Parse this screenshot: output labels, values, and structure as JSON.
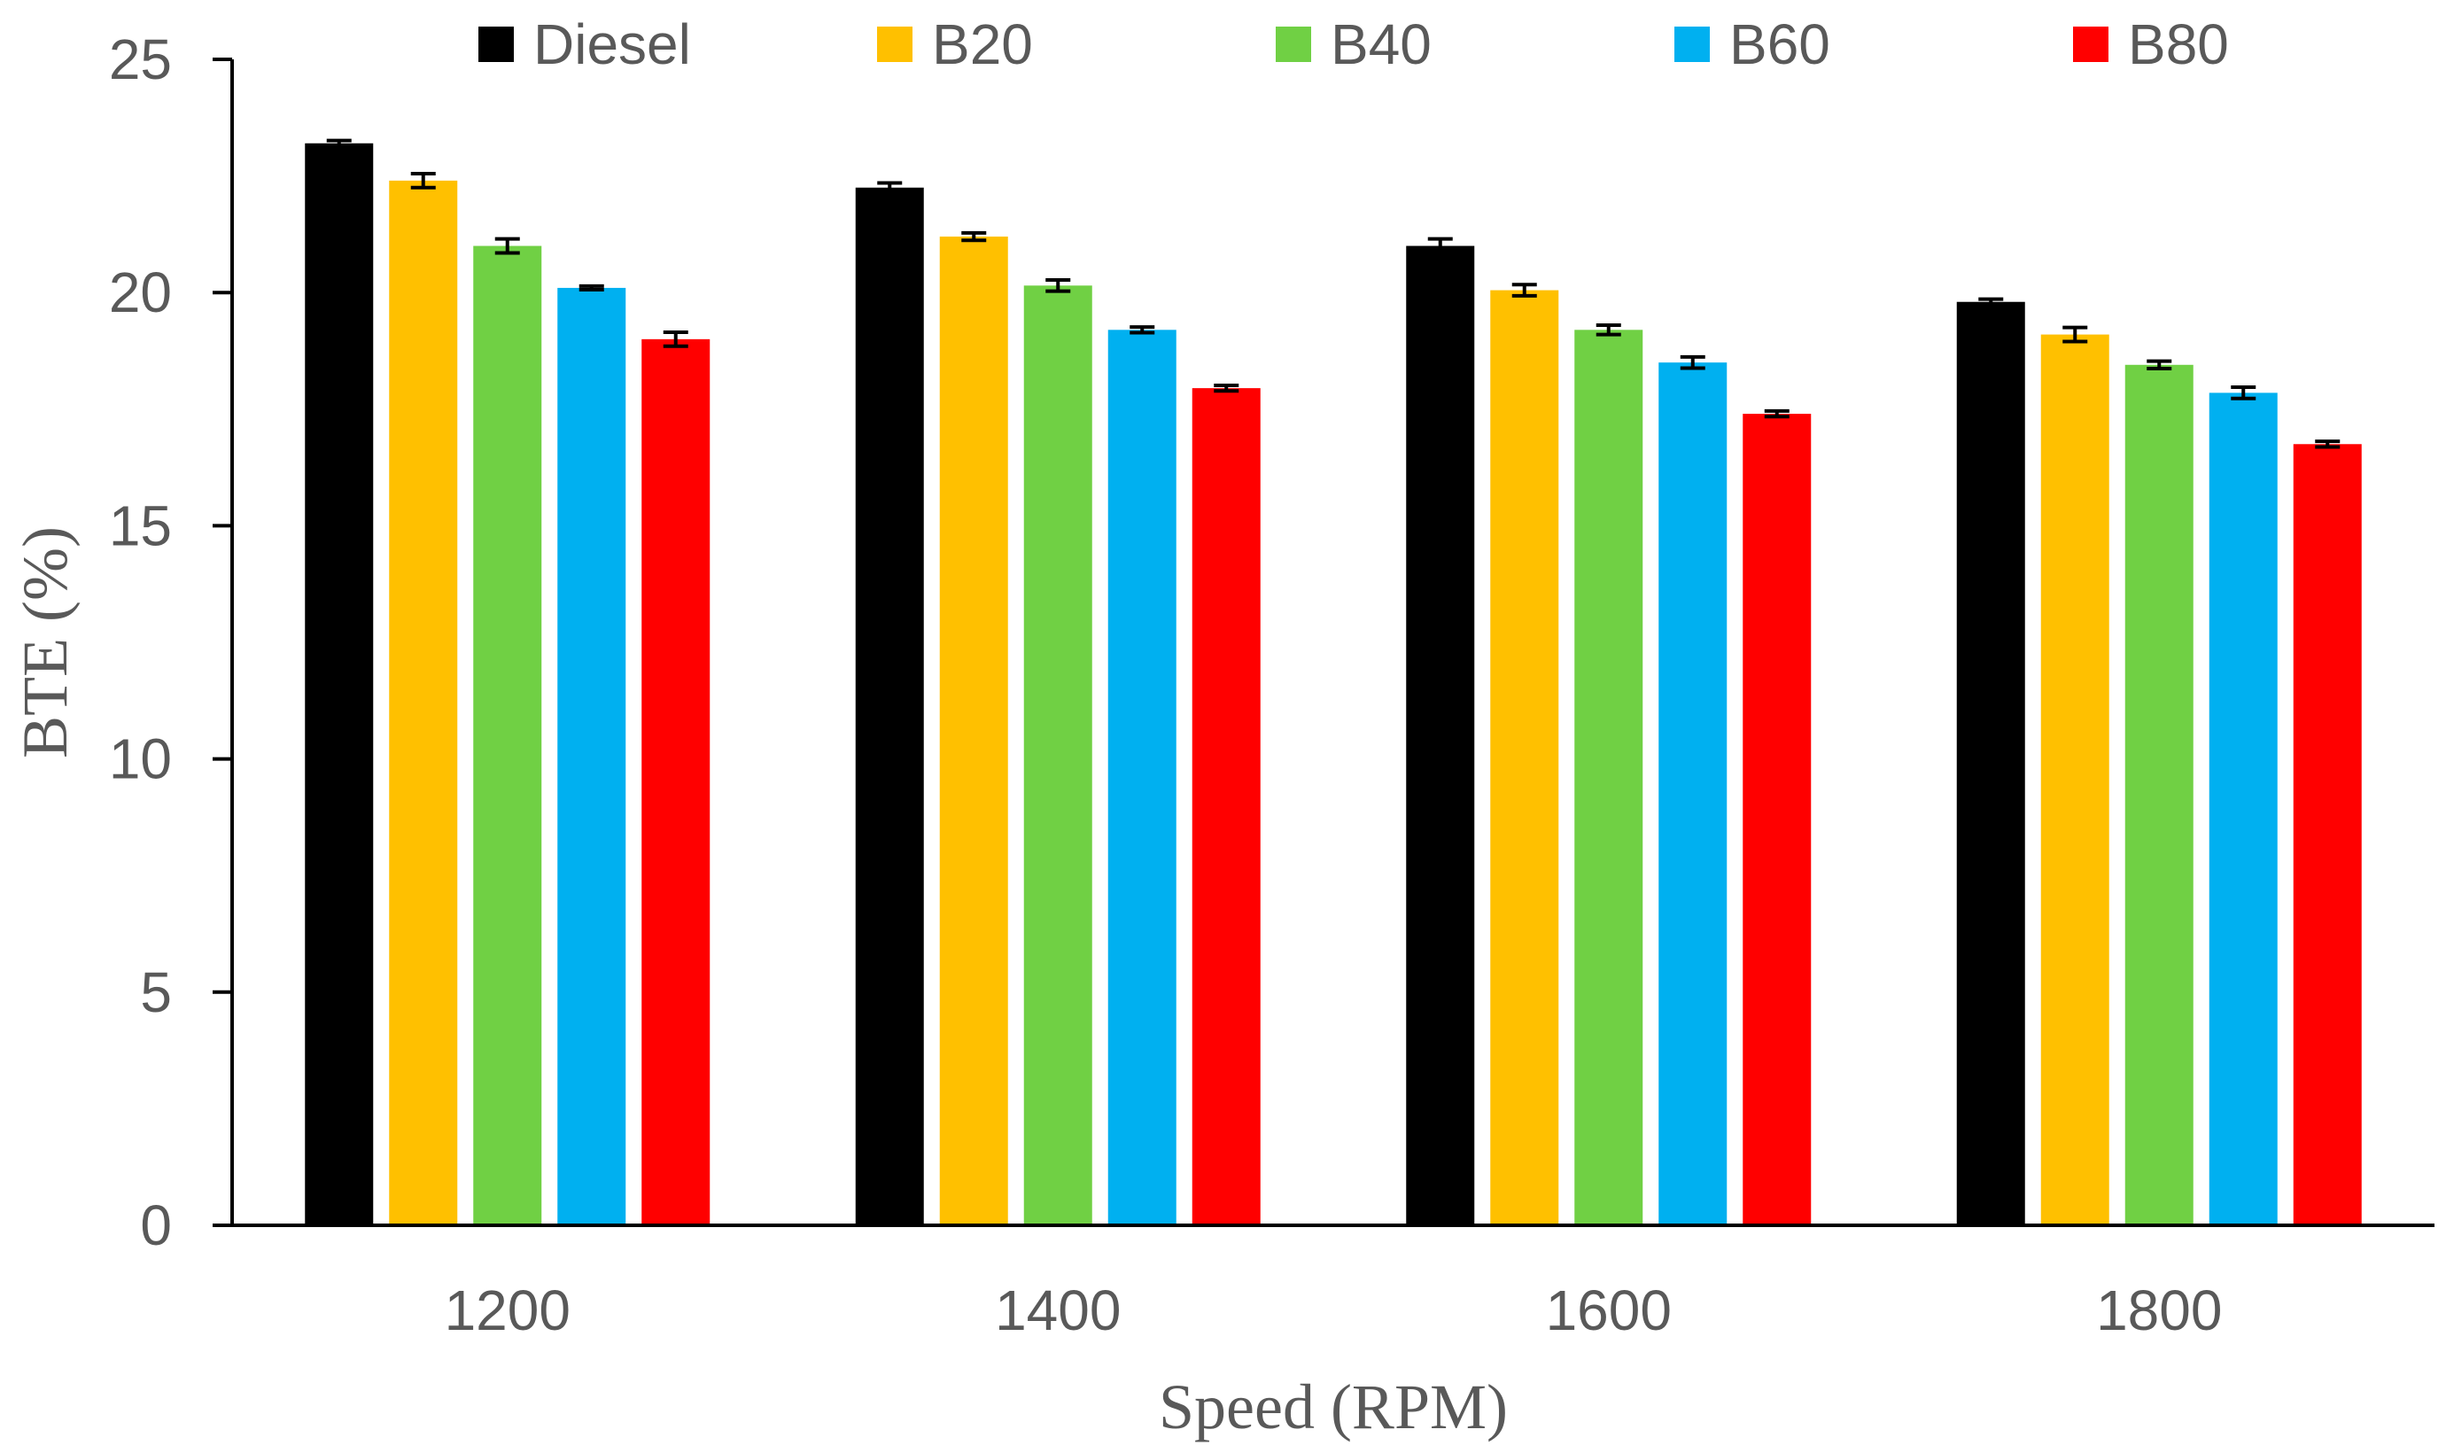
{
  "chart_data": {
    "type": "bar",
    "title": "",
    "xlabel": "Speed (RPM)",
    "ylabel": "BTE (%)",
    "ylim": [
      0,
      25
    ],
    "yticks": [
      0,
      5,
      10,
      15,
      20,
      25
    ],
    "categories": [
      "1200",
      "1400",
      "1600",
      "1800"
    ],
    "legend_position": "top",
    "series": [
      {
        "name": "Diesel",
        "color": "#000000",
        "values": [
          23.2,
          22.25,
          21.0,
          19.8
        ],
        "errors": [
          0.06,
          0.1,
          0.15,
          0.06
        ]
      },
      {
        "name": "B20",
        "color": "#FFC000",
        "values": [
          22.4,
          21.2,
          20.05,
          19.1
        ],
        "errors": [
          0.15,
          0.08,
          0.12,
          0.15
        ]
      },
      {
        "name": "B40",
        "color": "#70D044",
        "values": [
          21.0,
          20.15,
          19.2,
          18.45
        ],
        "errors": [
          0.15,
          0.12,
          0.1,
          0.08
        ]
      },
      {
        "name": "B60",
        "color": "#00B0F0",
        "values": [
          20.1,
          19.2,
          18.5,
          17.85
        ],
        "errors": [
          0.04,
          0.06,
          0.12,
          0.12
        ]
      },
      {
        "name": "B80",
        "color": "#FF0000",
        "values": [
          19.0,
          17.95,
          17.4,
          16.75
        ],
        "errors": [
          0.15,
          0.06,
          0.06,
          0.06
        ]
      }
    ]
  }
}
